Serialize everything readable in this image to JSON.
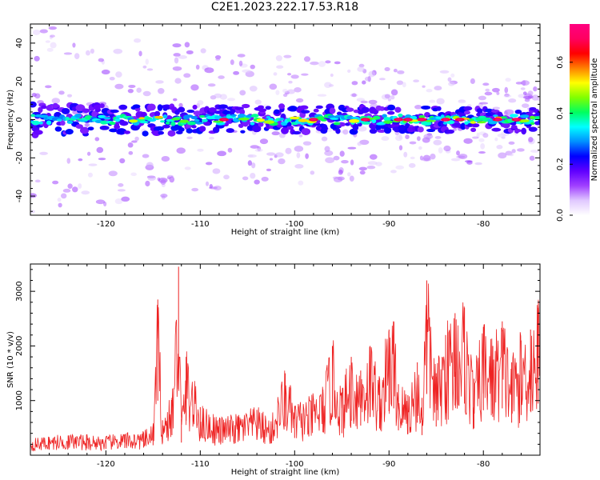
{
  "title": "C2E1.2023.222.17.53.R18",
  "chart_data": [
    {
      "type": "heatmap",
      "title": "C2E1.2023.222.17.53.R18",
      "xlabel": "Height of straight line (km)",
      "ylabel": "Frequency (Hz)",
      "xlim": [
        -128,
        -74
      ],
      "ylim": [
        -50,
        50
      ],
      "xticks": [
        -120,
        -110,
        -100,
        -90,
        -80
      ],
      "yticks": [
        -40,
        -20,
        0,
        20,
        40
      ],
      "colorbar": {
        "label": "Normalized spectral amplitude",
        "range": [
          0.0,
          0.75
        ],
        "ticks": [
          0.0,
          0.2,
          0.4,
          0.6
        ],
        "colormap": [
          "#ffffff",
          "#e0c8ff",
          "#a040ff",
          "#6000ff",
          "#0000ff",
          "#0090ff",
          "#00ffff",
          "#00ff60",
          "#80ff00",
          "#ffff00",
          "#ff8000",
          "#ff0000",
          "#ff0060",
          "#ff0080"
        ]
      },
      "band_center_hz": 0,
      "band_halfwidth_hz": 5,
      "hotspots_km": [
        -107.5,
        -98,
        -92.5,
        -89,
        -88,
        -86.5,
        -84,
        -82.5,
        -78.5,
        -76.5
      ],
      "grid": false
    },
    {
      "type": "line",
      "xlabel": "Height of straight line (km)",
      "ylabel": "SNR (10 * v/v)",
      "xlim": [
        -128,
        -74
      ],
      "ylim": [
        0,
        3500
      ],
      "xticks": [
        -120,
        -110,
        -100,
        -90,
        -80
      ],
      "yticks": [
        1000,
        2000,
        3000
      ],
      "color": "#ee2222",
      "grid": false,
      "series": [
        {
          "x": [
            -128,
            -126,
            -124,
            -122,
            -120,
            -118,
            -116,
            -115,
            -114.5,
            -114,
            -113,
            -112.3,
            -112,
            -111.5,
            -110,
            -108,
            -106,
            -104,
            -102.5,
            -101,
            -100,
            -98.5,
            -97,
            -96,
            -95,
            -94,
            -93,
            -92,
            -91,
            -90,
            -89.5,
            -89,
            -88,
            -87,
            -86.5,
            -86,
            -85,
            -84,
            -83,
            -82,
            -81,
            -80,
            -79,
            -78,
            -77,
            -76,
            -75,
            -74.2
          ],
          "values": [
            280,
            330,
            360,
            350,
            330,
            380,
            400,
            520,
            2850,
            640,
            1050,
            3450,
            660,
            1800,
            880,
            650,
            700,
            830,
            620,
            1500,
            900,
            980,
            1200,
            2000,
            1150,
            1800,
            1550,
            2000,
            1400,
            2300,
            2450,
            1300,
            1100,
            1700,
            1050,
            3200,
            1500,
            2200,
            2600,
            2700,
            1400,
            2350,
            2000,
            2450,
            1700,
            2100,
            2300,
            2700
          ]
        }
      ]
    }
  ]
}
